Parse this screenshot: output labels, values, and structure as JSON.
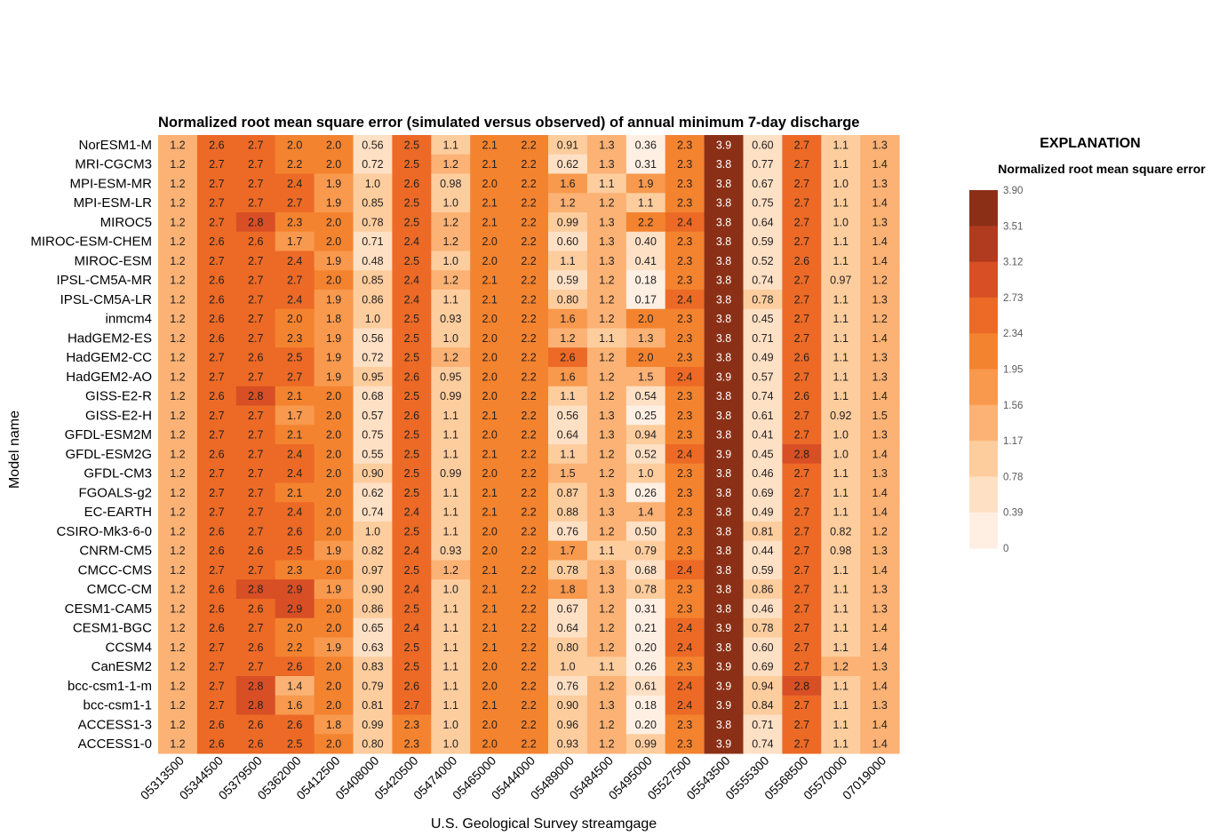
{
  "chart_data": {
    "type": "heatmap",
    "title": "Normalized root mean square error (simulated versus observed) of annual minimum 7-day discharge",
    "xlabel": "U.S. Geological Survey streamgage",
    "ylabel": "Model name",
    "columns": [
      "05313500",
      "05344500",
      "05379500",
      "05362000",
      "05412500",
      "05408000",
      "05420500",
      "05474000",
      "05465000",
      "05444000",
      "05489000",
      "05484500",
      "05495000",
      "05527500",
      "05543500",
      "05555300",
      "05568500",
      "05570000",
      "07019000"
    ],
    "rows": [
      "NorESM1-M",
      "MRI-CGCM3",
      "MPI-ESM-MR",
      "MPI-ESM-LR",
      "MIROC5",
      "MIROC-ESM-CHEM",
      "MIROC-ESM",
      "IPSL-CM5A-MR",
      "IPSL-CM5A-LR",
      "inmcm4",
      "HadGEM2-ES",
      "HadGEM2-CC",
      "HadGEM2-AO",
      "GISS-E2-R",
      "GISS-E2-H",
      "GFDL-ESM2M",
      "GFDL-ESM2G",
      "GFDL-CM3",
      "FGOALS-g2",
      "EC-EARTH",
      "CSIRO-Mk3-6-0",
      "CNRM-CM5",
      "CMCC-CMS",
      "CMCC-CM",
      "CESM1-CAM5",
      "CESM1-BGC",
      "CCSM4",
      "CanESM2",
      "bcc-csm1-1-m",
      "bcc-csm1-1",
      "ACCESS1-3",
      "ACCESS1-0"
    ],
    "values": [
      [
        "1.2",
        "2.6",
        "2.7",
        "2.0",
        "2.0",
        "0.56",
        "2.5",
        "1.1",
        "2.1",
        "2.2",
        "0.91",
        "1.3",
        "0.36",
        "2.3",
        "3.9",
        "0.60",
        "2.7",
        "1.1",
        "1.3"
      ],
      [
        "1.2",
        "2.7",
        "2.7",
        "2.2",
        "2.0",
        "0.72",
        "2.5",
        "1.2",
        "2.1",
        "2.2",
        "0.62",
        "1.3",
        "0.31",
        "2.3",
        "3.8",
        "0.77",
        "2.7",
        "1.1",
        "1.4"
      ],
      [
        "1.2",
        "2.7",
        "2.7",
        "2.4",
        "1.9",
        "1.0",
        "2.6",
        "0.98",
        "2.0",
        "2.2",
        "1.6",
        "1.1",
        "1.9",
        "2.3",
        "3.8",
        "0.67",
        "2.7",
        "1.0",
        "1.3"
      ],
      [
        "1.2",
        "2.7",
        "2.7",
        "2.7",
        "1.9",
        "0.85",
        "2.5",
        "1.0",
        "2.1",
        "2.2",
        "1.2",
        "1.2",
        "1.1",
        "2.3",
        "3.8",
        "0.75",
        "2.7",
        "1.1",
        "1.4"
      ],
      [
        "1.2",
        "2.7",
        "2.8",
        "2.3",
        "2.0",
        "0.78",
        "2.5",
        "1.2",
        "2.1",
        "2.2",
        "0.99",
        "1.3",
        "2.2",
        "2.4",
        "3.8",
        "0.64",
        "2.7",
        "1.0",
        "1.3"
      ],
      [
        "1.2",
        "2.6",
        "2.6",
        "1.7",
        "2.0",
        "0.71",
        "2.4",
        "1.2",
        "2.0",
        "2.2",
        "0.60",
        "1.3",
        "0.40",
        "2.3",
        "3.8",
        "0.59",
        "2.7",
        "1.1",
        "1.4"
      ],
      [
        "1.2",
        "2.7",
        "2.7",
        "2.4",
        "1.9",
        "0.48",
        "2.5",
        "1.0",
        "2.0",
        "2.2",
        "1.1",
        "1.3",
        "0.41",
        "2.3",
        "3.8",
        "0.52",
        "2.6",
        "1.1",
        "1.4"
      ],
      [
        "1.2",
        "2.6",
        "2.7",
        "2.7",
        "2.0",
        "0.85",
        "2.4",
        "1.2",
        "2.1",
        "2.2",
        "0.59",
        "1.2",
        "0.18",
        "2.3",
        "3.8",
        "0.74",
        "2.7",
        "0.97",
        "1.2"
      ],
      [
        "1.2",
        "2.6",
        "2.7",
        "2.4",
        "1.9",
        "0.86",
        "2.4",
        "1.1",
        "2.1",
        "2.2",
        "0.80",
        "1.2",
        "0.17",
        "2.4",
        "3.8",
        "0.78",
        "2.7",
        "1.1",
        "1.3"
      ],
      [
        "1.2",
        "2.6",
        "2.7",
        "2.0",
        "1.8",
        "1.0",
        "2.5",
        "0.93",
        "2.0",
        "2.2",
        "1.6",
        "1.2",
        "2.0",
        "2.3",
        "3.8",
        "0.45",
        "2.7",
        "1.1",
        "1.2"
      ],
      [
        "1.2",
        "2.6",
        "2.7",
        "2.3",
        "1.9",
        "0.56",
        "2.5",
        "1.0",
        "2.0",
        "2.2",
        "1.2",
        "1.1",
        "1.3",
        "2.3",
        "3.8",
        "0.71",
        "2.7",
        "1.1",
        "1.4"
      ],
      [
        "1.2",
        "2.7",
        "2.6",
        "2.5",
        "1.9",
        "0.72",
        "2.5",
        "1.2",
        "2.0",
        "2.2",
        "2.6",
        "1.2",
        "2.0",
        "2.3",
        "3.8",
        "0.49",
        "2.6",
        "1.1",
        "1.3"
      ],
      [
        "1.2",
        "2.7",
        "2.7",
        "2.7",
        "1.9",
        "0.95",
        "2.6",
        "0.95",
        "2.0",
        "2.2",
        "1.6",
        "1.2",
        "1.5",
        "2.4",
        "3.9",
        "0.57",
        "2.7",
        "1.1",
        "1.3"
      ],
      [
        "1.2",
        "2.6",
        "2.8",
        "2.1",
        "2.0",
        "0.68",
        "2.5",
        "0.99",
        "2.0",
        "2.2",
        "1.1",
        "1.2",
        "0.54",
        "2.3",
        "3.8",
        "0.74",
        "2.6",
        "1.1",
        "1.4"
      ],
      [
        "1.2",
        "2.7",
        "2.7",
        "1.7",
        "2.0",
        "0.57",
        "2.6",
        "1.1",
        "2.1",
        "2.2",
        "0.56",
        "1.3",
        "0.25",
        "2.3",
        "3.8",
        "0.61",
        "2.7",
        "0.92",
        "1.5"
      ],
      [
        "1.2",
        "2.7",
        "2.7",
        "2.1",
        "2.0",
        "0.75",
        "2.5",
        "1.1",
        "2.0",
        "2.2",
        "0.64",
        "1.3",
        "0.94",
        "2.3",
        "3.8",
        "0.41",
        "2.7",
        "1.0",
        "1.3"
      ],
      [
        "1.2",
        "2.6",
        "2.7",
        "2.4",
        "2.0",
        "0.55",
        "2.5",
        "1.1",
        "2.1",
        "2.2",
        "1.1",
        "1.2",
        "0.52",
        "2.4",
        "3.9",
        "0.45",
        "2.8",
        "1.0",
        "1.4"
      ],
      [
        "1.2",
        "2.7",
        "2.7",
        "2.4",
        "2.0",
        "0.90",
        "2.5",
        "0.99",
        "2.0",
        "2.2",
        "1.5",
        "1.2",
        "1.0",
        "2.3",
        "3.8",
        "0.46",
        "2.7",
        "1.1",
        "1.3"
      ],
      [
        "1.2",
        "2.7",
        "2.7",
        "2.1",
        "2.0",
        "0.62",
        "2.5",
        "1.1",
        "2.1",
        "2.2",
        "0.87",
        "1.3",
        "0.26",
        "2.3",
        "3.8",
        "0.69",
        "2.7",
        "1.1",
        "1.4"
      ],
      [
        "1.2",
        "2.7",
        "2.7",
        "2.4",
        "2.0",
        "0.74",
        "2.4",
        "1.1",
        "2.1",
        "2.2",
        "0.88",
        "1.3",
        "1.4",
        "2.3",
        "3.8",
        "0.49",
        "2.7",
        "1.1",
        "1.4"
      ],
      [
        "1.2",
        "2.6",
        "2.7",
        "2.6",
        "2.0",
        "1.0",
        "2.5",
        "1.1",
        "2.0",
        "2.2",
        "0.76",
        "1.2",
        "0.50",
        "2.3",
        "3.8",
        "0.81",
        "2.7",
        "0.82",
        "1.2"
      ],
      [
        "1.2",
        "2.6",
        "2.6",
        "2.5",
        "1.9",
        "0.82",
        "2.4",
        "0.93",
        "2.0",
        "2.2",
        "1.7",
        "1.1",
        "0.79",
        "2.3",
        "3.8",
        "0.44",
        "2.7",
        "0.98",
        "1.3"
      ],
      [
        "1.2",
        "2.7",
        "2.7",
        "2.3",
        "2.0",
        "0.97",
        "2.5",
        "1.2",
        "2.1",
        "2.2",
        "0.78",
        "1.3",
        "0.68",
        "2.4",
        "3.8",
        "0.59",
        "2.7",
        "1.1",
        "1.4"
      ],
      [
        "1.2",
        "2.6",
        "2.8",
        "2.9",
        "1.9",
        "0.90",
        "2.4",
        "1.0",
        "2.1",
        "2.2",
        "1.8",
        "1.3",
        "0.78",
        "2.3",
        "3.8",
        "0.86",
        "2.7",
        "1.1",
        "1.3"
      ],
      [
        "1.2",
        "2.6",
        "2.6",
        "2.9",
        "2.0",
        "0.86",
        "2.5",
        "1.1",
        "2.1",
        "2.2",
        "0.67",
        "1.2",
        "0.31",
        "2.3",
        "3.8",
        "0.46",
        "2.7",
        "1.1",
        "1.3"
      ],
      [
        "1.2",
        "2.6",
        "2.7",
        "2.0",
        "2.0",
        "0.65",
        "2.4",
        "1.1",
        "2.1",
        "2.2",
        "0.64",
        "1.2",
        "0.21",
        "2.4",
        "3.9",
        "0.78",
        "2.7",
        "1.1",
        "1.4"
      ],
      [
        "1.2",
        "2.7",
        "2.6",
        "2.2",
        "1.9",
        "0.63",
        "2.5",
        "1.1",
        "2.1",
        "2.2",
        "0.80",
        "1.2",
        "0.20",
        "2.4",
        "3.8",
        "0.60",
        "2.7",
        "1.1",
        "1.4"
      ],
      [
        "1.2",
        "2.7",
        "2.7",
        "2.6",
        "2.0",
        "0.83",
        "2.5",
        "1.1",
        "2.0",
        "2.2",
        "1.0",
        "1.1",
        "0.26",
        "2.3",
        "3.9",
        "0.69",
        "2.7",
        "1.2",
        "1.3"
      ],
      [
        "1.2",
        "2.7",
        "2.8",
        "1.4",
        "2.0",
        "0.79",
        "2.6",
        "1.1",
        "2.0",
        "2.2",
        "0.76",
        "1.2",
        "0.61",
        "2.4",
        "3.9",
        "0.94",
        "2.8",
        "1.1",
        "1.4"
      ],
      [
        "1.2",
        "2.7",
        "2.8",
        "1.6",
        "2.0",
        "0.81",
        "2.7",
        "1.1",
        "2.1",
        "2.2",
        "0.90",
        "1.3",
        "0.18",
        "2.4",
        "3.9",
        "0.84",
        "2.7",
        "1.1",
        "1.3"
      ],
      [
        "1.2",
        "2.6",
        "2.6",
        "2.6",
        "1.8",
        "0.99",
        "2.3",
        "1.0",
        "2.0",
        "2.2",
        "0.96",
        "1.2",
        "0.20",
        "2.3",
        "3.8",
        "0.71",
        "2.7",
        "1.1",
        "1.4"
      ],
      [
        "1.2",
        "2.6",
        "2.6",
        "2.5",
        "2.0",
        "0.80",
        "2.3",
        "1.0",
        "2.0",
        "2.2",
        "0.93",
        "1.2",
        "0.99",
        "2.3",
        "3.9",
        "0.74",
        "2.7",
        "1.1",
        "1.4"
      ]
    ],
    "legend": {
      "heading": "EXPLANATION",
      "subheading": "Normalized root mean square error",
      "breaks": [
        "3.90",
        "3.51",
        "3.12",
        "2.73",
        "2.34",
        "1.95",
        "1.56",
        "1.17",
        "0.78",
        "0.39",
        "0"
      ],
      "colors": [
        "#8b3016",
        "#b03b1f",
        "#d84f25",
        "#ec6a26",
        "#f4832f",
        "#f8994d",
        "#fbb274",
        "#fdcd9e",
        "#fee0c4",
        "#feefe2"
      ],
      "placement": "right"
    },
    "grid": false
  }
}
